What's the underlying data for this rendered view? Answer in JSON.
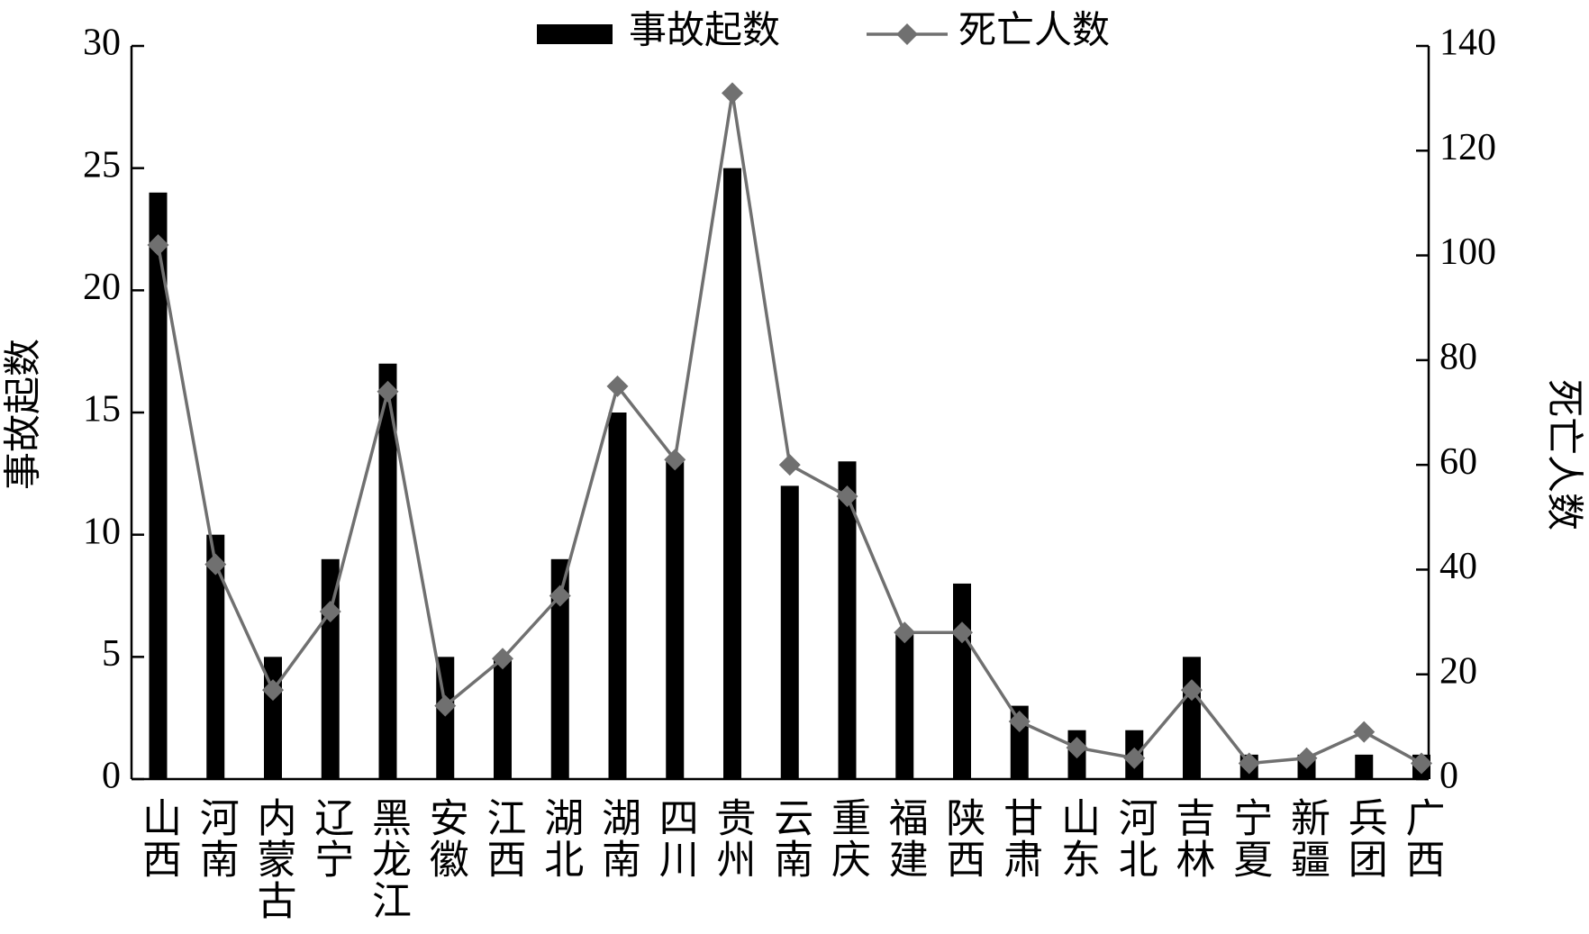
{
  "chart_data": {
    "type": "bar",
    "categories": [
      "山西",
      "河南",
      "内蒙古",
      "辽宁",
      "黑龙江",
      "安徽",
      "江西",
      "湖北",
      "湖南",
      "四川",
      "贵州",
      "云南",
      "重庆",
      "福建",
      "陕西",
      "甘肃",
      "山东",
      "河北",
      "吉林",
      "宁夏",
      "新疆",
      "兵团",
      "广西"
    ],
    "series": [
      {
        "name": "事故起数",
        "color": "#000000",
        "type": "bar",
        "values": [
          24,
          10,
          5,
          9,
          17,
          5,
          5,
          9,
          15,
          13,
          25,
          12,
          13,
          6,
          8,
          3,
          2,
          2,
          5,
          1,
          1,
          1,
          1
        ]
      },
      {
        "name": "死亡人数",
        "color": "#707070",
        "type": "line",
        "axis": "y2",
        "values": [
          102,
          41,
          17,
          32,
          74,
          14,
          23,
          35,
          75,
          61,
          131,
          60,
          54,
          28,
          28,
          11,
          6,
          4,
          17,
          3,
          4,
          9,
          3
        ]
      }
    ],
    "y_label": "事故起数",
    "y2_label": "死亡人数",
    "ylim": [
      0,
      30
    ],
    "yticks": [
      0,
      5,
      10,
      15,
      20,
      25,
      30
    ],
    "y2lim": [
      0,
      140
    ],
    "y2ticks": [
      0,
      20,
      40,
      60,
      80,
      100,
      120,
      140
    ],
    "legend": "top"
  }
}
